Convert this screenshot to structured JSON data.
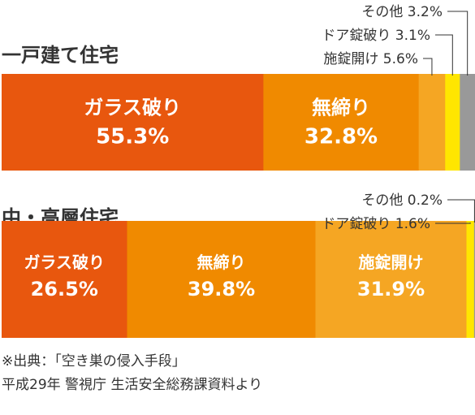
{
  "colors": {
    "glass": "#E8570E",
    "unlocked": "#F08A00",
    "lockpick": "#F5A623",
    "door_lock": "#FFE600",
    "other": "#999999",
    "label_white": "#FFFFFF",
    "text": "#333333",
    "leader": "#333333"
  },
  "chart_data": [
    {
      "type": "bar",
      "orientation": "horizontal-stacked-100",
      "title": "一戸建て住宅",
      "xlim": [
        0,
        100
      ],
      "series": [
        {
          "name": "ガラス破り",
          "value": 55.3,
          "label": "55.3%",
          "color": "#E8570E",
          "inside": true
        },
        {
          "name": "無締り",
          "value": 32.8,
          "label": "32.8%",
          "color": "#F08A00",
          "inside": true
        },
        {
          "name": "施錠開け",
          "value": 5.6,
          "label": "5.6%",
          "color": "#F5A623",
          "inside": false
        },
        {
          "name": "ドア錠破り",
          "value": 3.1,
          "label": "3.1%",
          "color": "#FFE600",
          "inside": false
        },
        {
          "name": "その他",
          "value": 3.2,
          "label": "3.2%",
          "color": "#999999",
          "inside": false
        }
      ]
    },
    {
      "type": "bar",
      "orientation": "horizontal-stacked-100",
      "title": "中・高層住宅",
      "xlim": [
        0,
        100
      ],
      "series": [
        {
          "name": "ガラス破り",
          "value": 26.5,
          "label": "26.5%",
          "color": "#E8570E",
          "inside": true
        },
        {
          "name": "無締り",
          "value": 39.8,
          "label": "39.8%",
          "color": "#F08A00",
          "inside": true
        },
        {
          "name": "施錠開け",
          "value": 31.9,
          "label": "31.9%",
          "color": "#F5A623",
          "inside": true
        },
        {
          "name": "ドア錠破り",
          "value": 1.6,
          "label": "1.6%",
          "color": "#FFE600",
          "inside": false
        },
        {
          "name": "その他",
          "value": 0.2,
          "label": "0.2%",
          "color": "#999999",
          "inside": false
        }
      ]
    }
  ],
  "source": {
    "line1": "※出典：「空き巣の侵入手段」",
    "line2": "平成29年 警視庁 生活安全総務課資料より"
  }
}
